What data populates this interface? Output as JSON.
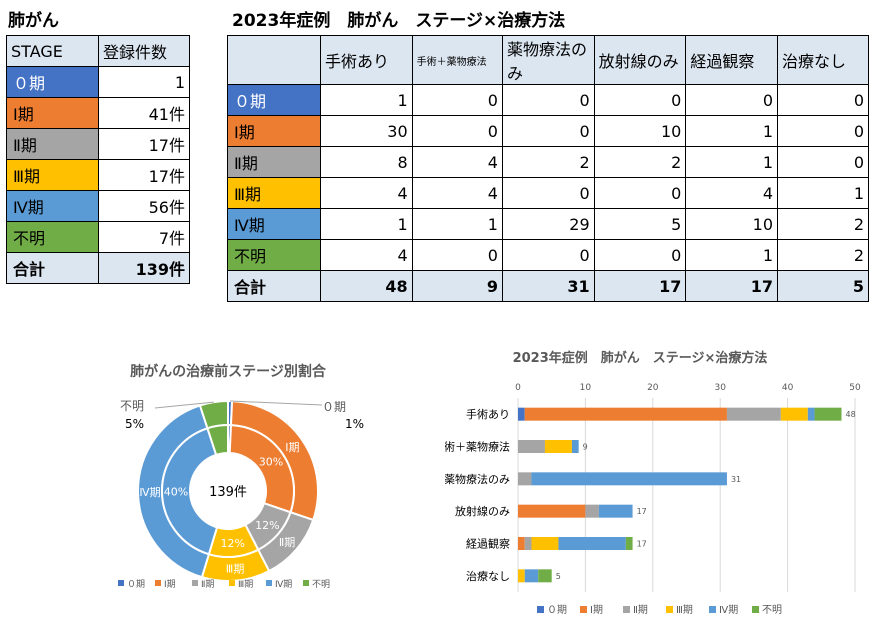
{
  "left_title": "肺がん",
  "right_title": "2023年症例　肺がん　ステージ×治療方法",
  "stage_table": {
    "headers": [
      "STAGE",
      "登録件数"
    ],
    "rows": [
      {
        "stage": "０期",
        "count": "1",
        "color": "#4472c4"
      },
      {
        "stage": "Ⅰ期",
        "count": "41件",
        "color": "#ed7d31"
      },
      {
        "stage": "Ⅱ期",
        "count": "17件",
        "color": "#a5a5a5"
      },
      {
        "stage": "Ⅲ期",
        "count": "17件",
        "color": "#ffc000"
      },
      {
        "stage": "Ⅳ期",
        "count": "56件",
        "color": "#5b9bd5"
      },
      {
        "stage": "不明",
        "count": "7件",
        "color": "#70ad47"
      }
    ],
    "total_label": "合計",
    "total_value": "139件"
  },
  "treat_table": {
    "headers": [
      "手術あり",
      "手術＋薬物療法",
      "薬物療法のみ",
      "放射線のみ",
      "経過観察",
      "治療なし"
    ],
    "rows": [
      {
        "stage": "０期",
        "values": [
          "1",
          "0",
          "0",
          "0",
          "0",
          "0"
        ]
      },
      {
        "stage": "Ⅰ期",
        "values": [
          "30",
          "0",
          "0",
          "10",
          "1",
          "0"
        ]
      },
      {
        "stage": "Ⅱ期",
        "values": [
          "8",
          "4",
          "2",
          "2",
          "1",
          "0"
        ]
      },
      {
        "stage": "Ⅲ期",
        "values": [
          "4",
          "4",
          "0",
          "0",
          "4",
          "1"
        ]
      },
      {
        "stage": "Ⅳ期",
        "values": [
          "1",
          "1",
          "29",
          "5",
          "10",
          "2"
        ]
      },
      {
        "stage": "不明",
        "values": [
          "4",
          "0",
          "0",
          "0",
          "1",
          "2"
        ]
      }
    ],
    "total_label": "合計",
    "totals": [
      "48",
      "9",
      "31",
      "17",
      "17",
      "5"
    ]
  },
  "chart_data": [
    {
      "type": "pie",
      "title": "肺がんの治療前ステージ別割合",
      "center_label": "139件",
      "categories": [
        "０期",
        "Ⅰ期",
        "Ⅱ期",
        "Ⅲ期",
        "Ⅳ期",
        "不明"
      ],
      "values": [
        1,
        41,
        17,
        17,
        56,
        7
      ],
      "percent_labels": [
        "1%",
        "30%",
        "12%",
        "12%",
        "40%",
        "5%"
      ],
      "colors": [
        "#4472c4",
        "#ed7d31",
        "#a5a5a5",
        "#ffc000",
        "#5b9bd5",
        "#70ad47"
      ],
      "legend": [
        "０期",
        "Ⅰ期",
        "Ⅱ期",
        "Ⅲ期",
        "Ⅳ期",
        "不明"
      ],
      "legend_position": "bottom"
    },
    {
      "type": "bar",
      "orientation": "horizontal",
      "stacked": true,
      "title": "2023年症例　肺がん　ステージ×治療方法",
      "categories": [
        "手術あり",
        "手術＋薬物療法",
        "薬物療法のみ",
        "放射線のみ",
        "経過観察",
        "治療なし"
      ],
      "series": [
        {
          "name": "０期",
          "values": [
            1,
            0,
            0,
            0,
            0,
            0
          ]
        },
        {
          "name": "Ⅰ期",
          "values": [
            30,
            0,
            0,
            10,
            1,
            0
          ]
        },
        {
          "name": "Ⅱ期",
          "values": [
            8,
            4,
            2,
            2,
            1,
            0
          ]
        },
        {
          "name": "Ⅲ期",
          "values": [
            4,
            4,
            0,
            0,
            4,
            1
          ]
        },
        {
          "name": "Ⅳ期",
          "values": [
            1,
            1,
            29,
            5,
            10,
            2
          ]
        },
        {
          "name": "不明",
          "values": [
            4,
            0,
            0,
            0,
            1,
            2
          ]
        }
      ],
      "totals": [
        48,
        9,
        31,
        17,
        17,
        5
      ],
      "colors": [
        "#4472c4",
        "#ed7d31",
        "#a5a5a5",
        "#ffc000",
        "#5b9bd5",
        "#70ad47"
      ],
      "xlim": [
        0,
        50
      ],
      "xticks": [
        0,
        10,
        20,
        30,
        40,
        50
      ],
      "grid": true,
      "legend_position": "bottom"
    }
  ]
}
